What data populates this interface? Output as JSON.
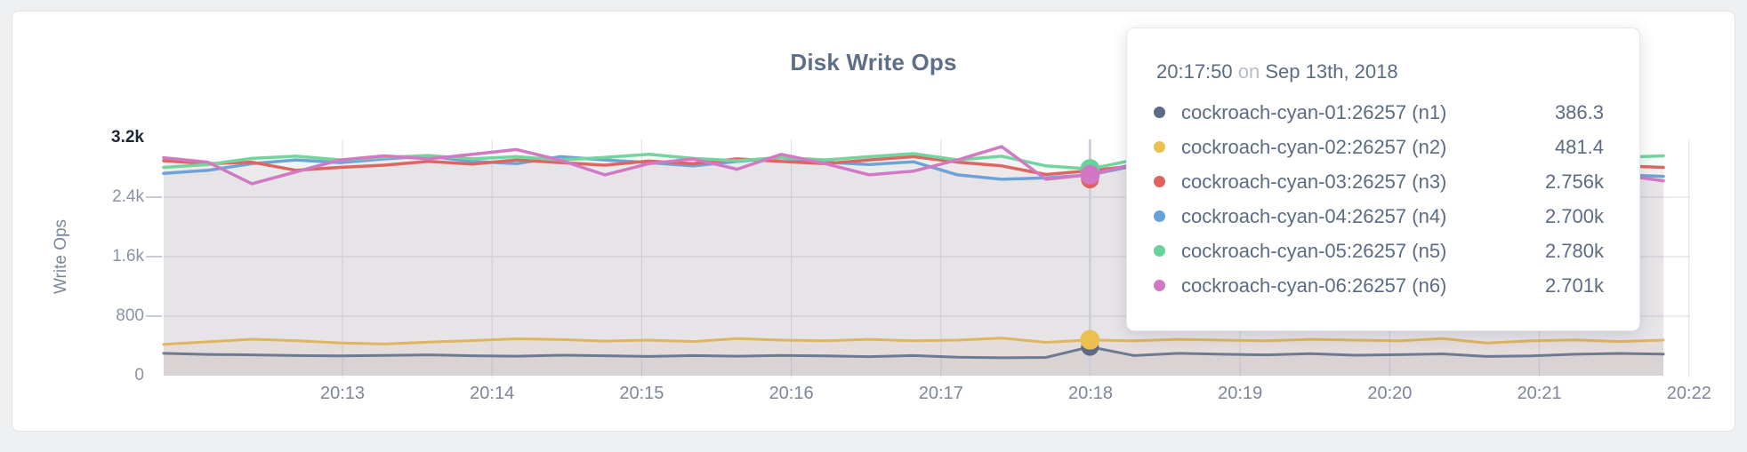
{
  "page": {
    "title": "Disk Write Ops",
    "y_axis_label": "Write Ops"
  },
  "axes": {
    "y_ticks": [
      {
        "label": "3.2k",
        "value": 3200,
        "emphasized": true
      },
      {
        "label": "2.4k",
        "value": 2400,
        "emphasized": false
      },
      {
        "label": "1.6k",
        "value": 1600,
        "emphasized": false
      },
      {
        "label": "800",
        "value": 800,
        "emphasized": false
      },
      {
        "label": "0",
        "value": 0,
        "emphasized": false
      }
    ],
    "x_ticks": [
      "20:13",
      "20:14",
      "20:15",
      "20:16",
      "20:17",
      "20:18",
      "20:19",
      "20:20",
      "20:21",
      "20:22"
    ]
  },
  "tooltip": {
    "time": "20:17:50",
    "connector": "on",
    "date": "Sep 13th, 2018"
  },
  "colors": {
    "title_text": "#5d6e88",
    "tooltip_text": "#5c6b84",
    "axis_text": "#7c8698",
    "grid_horizontal": "#d8dbe0",
    "grid_vertical": "#dcdee4",
    "hover_guideline": "#ccd1d9"
  },
  "chart_data": {
    "type": "line",
    "title": "Disk Write Ops",
    "xlabel": "",
    "ylabel": "Write Ops",
    "ylim": [
      0,
      3200
    ],
    "grid": true,
    "legend_position": "tooltip",
    "x_tick_labels": [
      "20:13",
      "20:14",
      "20:15",
      "20:16",
      "20:17",
      "20:18",
      "20:19",
      "20:20",
      "20:21",
      "20:22"
    ],
    "hover": {
      "time": "20:17:50",
      "date": "Sep 13th, 2018",
      "index": 21
    },
    "series": [
      {
        "name": "cockroach-cyan-01:26257 (n1)",
        "hover_value": "386.3",
        "line_color": "#6e7a92",
        "dot_color": "#5b6a86",
        "values": [
          300,
          285,
          280,
          270,
          265,
          272,
          280,
          268,
          262,
          275,
          268,
          258,
          270,
          262,
          272,
          265,
          255,
          270,
          248,
          240,
          245,
          386.3,
          270,
          300,
          288,
          280,
          295,
          275,
          282,
          292,
          258,
          266,
          288,
          298,
          290
        ]
      },
      {
        "name": "cockroach-cyan-02:26257 (n2)",
        "hover_value": "481.4",
        "line_color": "#dfb55e",
        "dot_color": "#ecc050",
        "values": [
          420,
          455,
          490,
          470,
          440,
          425,
          450,
          472,
          495,
          485,
          465,
          478,
          458,
          498,
          478,
          468,
          488,
          468,
          478,
          505,
          448,
          481.4,
          468,
          488,
          478,
          468,
          488,
          478,
          468,
          498,
          438,
          468,
          480,
          458,
          478
        ]
      },
      {
        "name": "cockroach-cyan-03:26257 (n3)",
        "hover_value": "2.756k",
        "line_color": "#df6563",
        "dot_color": "#e0625f",
        "values": [
          2890,
          2850,
          2870,
          2760,
          2800,
          2830,
          2880,
          2845,
          2900,
          2865,
          2830,
          2885,
          2850,
          2915,
          2880,
          2850,
          2900,
          2945,
          2870,
          2820,
          2705,
          2756,
          2820,
          2880,
          2850,
          2800,
          2860,
          2900,
          2865,
          2830,
          2790,
          2850,
          2880,
          2820,
          2800
        ]
      },
      {
        "name": "cockroach-cyan-04:26257 (n4)",
        "hover_value": "2.700k",
        "line_color": "#6fa3d7",
        "dot_color": "#66a2d8",
        "values": [
          2720,
          2760,
          2850,
          2900,
          2865,
          2915,
          2950,
          2880,
          2850,
          2945,
          2900,
          2865,
          2820,
          2880,
          2930,
          2870,
          2840,
          2875,
          2700,
          2640,
          2660,
          2700,
          2820,
          2865,
          2900,
          2850,
          2800,
          2760,
          2850,
          2900,
          2860,
          2700,
          2650,
          2700,
          2680
        ]
      },
      {
        "name": "cockroach-cyan-05:26257 (n5)",
        "hover_value": "2.780k",
        "line_color": "#74d49e",
        "dot_color": "#68d29c",
        "values": [
          2800,
          2840,
          2920,
          2950,
          2900,
          2935,
          2960,
          2915,
          2945,
          2900,
          2935,
          2975,
          2920,
          2890,
          2935,
          2900,
          2945,
          2985,
          2900,
          2950,
          2820,
          2780,
          2900,
          2945,
          2920,
          2880,
          2935,
          2900,
          2930,
          2890,
          2850,
          2945,
          2900,
          2935,
          2955
        ]
      },
      {
        "name": "cockroach-cyan-06:26257 (n6)",
        "hover_value": "2.701k",
        "line_color": "#d279c5",
        "dot_color": "#d277c4",
        "values": [
          2930,
          2870,
          2580,
          2740,
          2900,
          2955,
          2915,
          2975,
          3040,
          2895,
          2700,
          2850,
          2915,
          2775,
          2975,
          2850,
          2700,
          2750,
          2900,
          3080,
          2640,
          2701,
          2845,
          2700,
          2950,
          2850,
          2895,
          2870,
          2995,
          2800,
          2750,
          2895,
          2945,
          2700,
          2620
        ]
      }
    ]
  }
}
